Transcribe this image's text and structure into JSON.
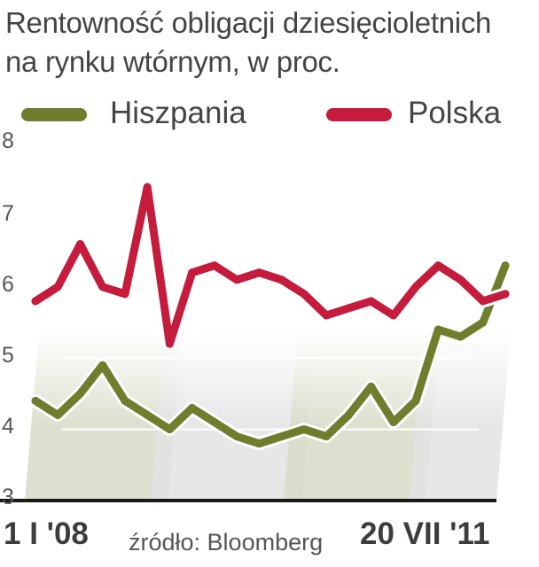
{
  "title_line1": "Rentowność obligacji dziesięcioletnich",
  "title_line2": "na rynku wtórnym, w proc.",
  "source": "źródło: Bloomberg",
  "colors": {
    "spain": "#6e7e2c",
    "poland": "#c51b3c",
    "band_green": "#d7dbc7",
    "band_gray": "#e3e3e3"
  },
  "chart_data": {
    "type": "line",
    "title": "Rentowność obligacji dziesięcioletnich na rynku wtórnym, w proc.",
    "x_start_label": "1 I '08",
    "x_end_label": "20 VII '11",
    "x": [
      "2008-01",
      "2008-03",
      "2008-05",
      "2008-07",
      "2008-09",
      "2008-11",
      "2009-01",
      "2009-03",
      "2009-05",
      "2009-07",
      "2009-09",
      "2009-11",
      "2010-01",
      "2010-03",
      "2010-05",
      "2010-07",
      "2010-09",
      "2010-11",
      "2011-01",
      "2011-03",
      "2011-05",
      "2011-07"
    ],
    "ylim": [
      3,
      8
    ],
    "yticks": [
      "3",
      "4",
      "5",
      "6",
      "7",
      "8"
    ],
    "gridlines": [
      4,
      5
    ],
    "legend_position": "top",
    "series": [
      {
        "name": "Hiszpania",
        "color": "#6e7e2c",
        "values": [
          4.4,
          4.2,
          4.5,
          4.9,
          4.4,
          4.2,
          4.0,
          4.3,
          4.1,
          3.9,
          3.8,
          3.9,
          4.0,
          3.9,
          4.2,
          4.6,
          4.1,
          4.4,
          5.4,
          5.3,
          5.5,
          6.3
        ]
      },
      {
        "name": "Polska",
        "color": "#c51b3c",
        "values": [
          5.8,
          6.0,
          6.6,
          6.0,
          5.9,
          7.4,
          5.2,
          6.2,
          6.3,
          6.1,
          6.2,
          6.1,
          5.9,
          5.6,
          5.7,
          5.8,
          5.6,
          6.0,
          6.3,
          6.1,
          5.8,
          5.9
        ]
      }
    ]
  }
}
